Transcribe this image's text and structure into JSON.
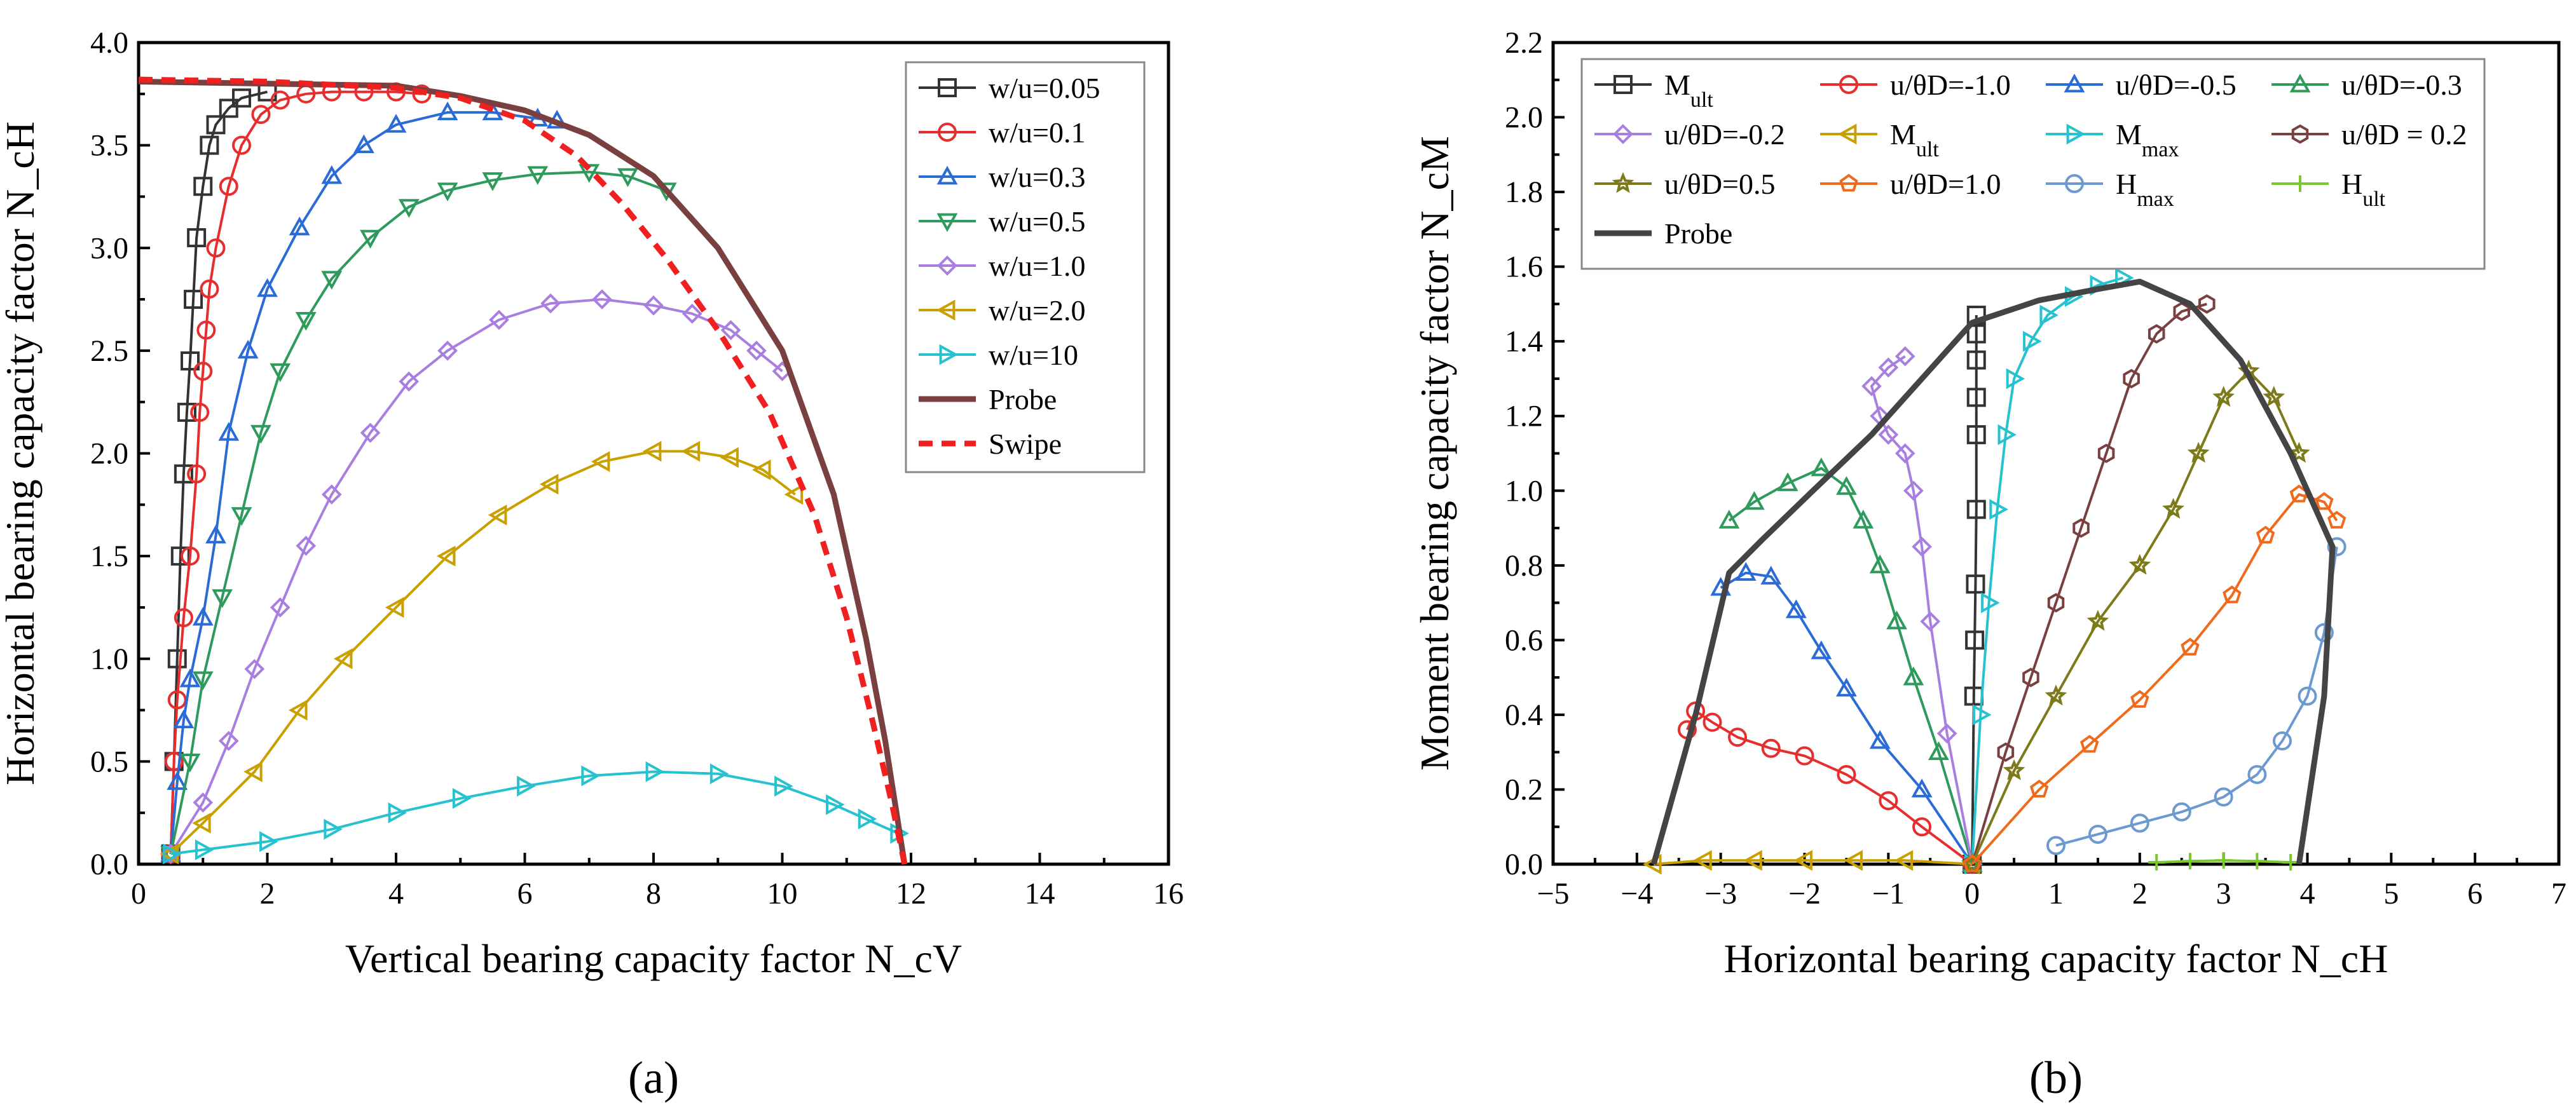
{
  "chart_data": [
    {
      "type": "line",
      "panel_label": "(a)",
      "xlabel": "Vertical bearing capacity factor N_cV",
      "ylabel": "Horizontal bearing capacity factor N_cH",
      "xlim": [
        0,
        16
      ],
      "ylim": [
        0,
        4.0
      ],
      "xticks": [
        "0",
        "2",
        "4",
        "6",
        "8",
        "10",
        "12",
        "14",
        "16"
      ],
      "yticks": [
        "0.0",
        "0.5",
        "1.0",
        "1.5",
        "2.0",
        "2.5",
        "3.0",
        "3.5",
        "4.0"
      ],
      "legend_position": "top-right",
      "series": [
        {
          "name": "w/u=0.05",
          "color": "#333333",
          "marker": "square",
          "x": [
            0.5,
            0.55,
            0.6,
            0.65,
            0.7,
            0.75,
            0.8,
            0.85,
            0.9,
            1.0,
            1.1,
            1.2,
            1.4,
            1.6,
            2.0
          ],
          "y": [
            0.05,
            0.5,
            1.0,
            1.5,
            1.9,
            2.2,
            2.45,
            2.75,
            3.05,
            3.3,
            3.5,
            3.6,
            3.68,
            3.73,
            3.76
          ]
        },
        {
          "name": "w/u=0.1",
          "color": "#e62e2e",
          "marker": "circle",
          "x": [
            0.5,
            0.55,
            0.6,
            0.7,
            0.8,
            0.9,
            0.95,
            1.0,
            1.05,
            1.1,
            1.2,
            1.4,
            1.6,
            1.9,
            2.2,
            2.6,
            3.0,
            3.5,
            4.0,
            4.4
          ],
          "y": [
            0.05,
            0.5,
            0.8,
            1.2,
            1.5,
            1.9,
            2.2,
            2.4,
            2.6,
            2.8,
            3.0,
            3.3,
            3.5,
            3.65,
            3.72,
            3.75,
            3.76,
            3.76,
            3.76,
            3.75
          ]
        },
        {
          "name": "w/u=0.3",
          "color": "#2a6bd6",
          "marker": "triangle-up",
          "x": [
            0.5,
            0.6,
            0.7,
            0.8,
            1.0,
            1.2,
            1.4,
            1.7,
            2.0,
            2.5,
            3.0,
            3.5,
            4.0,
            4.8,
            5.5,
            6.2,
            6.5
          ],
          "y": [
            0.05,
            0.4,
            0.7,
            0.9,
            1.2,
            1.6,
            2.1,
            2.5,
            2.8,
            3.1,
            3.35,
            3.5,
            3.6,
            3.66,
            3.66,
            3.63,
            3.62
          ]
        },
        {
          "name": "w/u=0.5",
          "color": "#2e9a5c",
          "marker": "triangle-down",
          "x": [
            0.5,
            0.8,
            1.0,
            1.3,
            1.6,
            1.9,
            2.2,
            2.6,
            3.0,
            3.6,
            4.2,
            4.8,
            5.5,
            6.2,
            7.0,
            7.6,
            8.2
          ],
          "y": [
            0.05,
            0.5,
            0.9,
            1.3,
            1.7,
            2.1,
            2.4,
            2.65,
            2.85,
            3.05,
            3.2,
            3.28,
            3.33,
            3.36,
            3.37,
            3.35,
            3.28
          ]
        },
        {
          "name": "w/u=1.0",
          "color": "#a87fe0",
          "marker": "diamond",
          "x": [
            0.5,
            1.0,
            1.4,
            1.8,
            2.2,
            2.6,
            3.0,
            3.6,
            4.2,
            4.8,
            5.6,
            6.4,
            7.2,
            8.0,
            8.6,
            9.2,
            9.6,
            10.0
          ],
          "y": [
            0.05,
            0.3,
            0.6,
            0.95,
            1.25,
            1.55,
            1.8,
            2.1,
            2.35,
            2.5,
            2.65,
            2.73,
            2.75,
            2.72,
            2.68,
            2.6,
            2.5,
            2.4
          ]
        },
        {
          "name": "w/u=2.0",
          "color": "#c9a000",
          "marker": "triangle-left",
          "x": [
            0.5,
            1.0,
            1.8,
            2.5,
            3.2,
            4.0,
            4.8,
            5.6,
            6.4,
            7.2,
            8.0,
            8.6,
            9.2,
            9.7,
            10.2
          ],
          "y": [
            0.05,
            0.2,
            0.45,
            0.75,
            1.0,
            1.25,
            1.5,
            1.7,
            1.85,
            1.96,
            2.01,
            2.01,
            1.98,
            1.92,
            1.8
          ]
        },
        {
          "name": "w/u=10",
          "color": "#27c2cf",
          "marker": "triangle-right",
          "x": [
            0.5,
            1.0,
            2.0,
            3.0,
            4.0,
            5.0,
            6.0,
            7.0,
            8.0,
            9.0,
            10.0,
            10.8,
            11.3,
            11.8
          ],
          "y": [
            0.05,
            0.07,
            0.11,
            0.17,
            0.25,
            0.32,
            0.38,
            0.43,
            0.45,
            0.44,
            0.38,
            0.29,
            0.22,
            0.15
          ]
        },
        {
          "name": "Probe",
          "color": "#7a4040",
          "marker": "none",
          "x": [
            0,
            2,
            4,
            5,
            6,
            7,
            8,
            9,
            10,
            10.8,
            11.3,
            11.6,
            11.8,
            11.9
          ],
          "y": [
            3.81,
            3.8,
            3.79,
            3.74,
            3.67,
            3.55,
            3.35,
            3.0,
            2.5,
            1.8,
            1.1,
            0.6,
            0.2,
            0.0
          ]
        },
        {
          "name": "Swipe",
          "color": "#f02020",
          "marker": "none",
          "dashed": true,
          "x": [
            0,
            2,
            4,
            5,
            6,
            6.8,
            7.5,
            8.2,
            9.0,
            9.8,
            10.5,
            11.0,
            11.4,
            11.7,
            11.9
          ],
          "y": [
            3.82,
            3.81,
            3.78,
            3.73,
            3.62,
            3.45,
            3.22,
            2.95,
            2.6,
            2.2,
            1.7,
            1.2,
            0.7,
            0.3,
            0.0
          ]
        }
      ]
    },
    {
      "type": "line",
      "panel_label": "(b)",
      "xlabel": "Horizontal bearing capacity factor N_cH",
      "ylabel": "Moment bearing capacity factor N_cM",
      "xlim": [
        -5,
        7
      ],
      "ylim": [
        0,
        2.2
      ],
      "xticks": [
        "−5",
        "−4",
        "−3",
        "−2",
        "−1",
        "0",
        "1",
        "2",
        "3",
        "4",
        "5",
        "6",
        "7"
      ],
      "yticks": [
        "0.0",
        "0.2",
        "0.4",
        "0.6",
        "0.8",
        "1.0",
        "1.2",
        "1.4",
        "1.6",
        "1.8",
        "2.0",
        "2.2"
      ],
      "legend_position": "top",
      "series": [
        {
          "name": "M_ult",
          "color": "#333333",
          "marker": "square",
          "x": [
            0,
            0.02,
            0.03,
            0.04,
            0.05,
            0.05,
            0.05,
            0.05,
            0.05,
            0.05
          ],
          "y": [
            0.0,
            0.45,
            0.6,
            0.75,
            0.95,
            1.15,
            1.25,
            1.35,
            1.42,
            1.47
          ]
        },
        {
          "name": "u/θD=-1.0",
          "color": "#e62e2e",
          "marker": "circle",
          "x": [
            0,
            -0.6,
            -1.0,
            -1.5,
            -2.0,
            -2.4,
            -2.8,
            -3.1,
            -3.3,
            -3.4
          ],
          "y": [
            0.0,
            0.1,
            0.17,
            0.24,
            0.29,
            0.31,
            0.34,
            0.38,
            0.41,
            0.36
          ]
        },
        {
          "name": "u/θD=-0.5",
          "color": "#2a6bd6",
          "marker": "triangle-up",
          "x": [
            0,
            -0.6,
            -1.1,
            -1.5,
            -1.8,
            -2.1,
            -2.4,
            -2.7,
            -3.0
          ],
          "y": [
            0.0,
            0.2,
            0.33,
            0.47,
            0.57,
            0.68,
            0.77,
            0.78,
            0.74
          ]
        },
        {
          "name": "u/θD=-0.3",
          "color": "#2e9a5c",
          "marker": "triangle-up",
          "x": [
            0,
            -0.4,
            -0.7,
            -0.9,
            -1.1,
            -1.3,
            -1.5,
            -1.8,
            -2.2,
            -2.6,
            -2.9
          ],
          "y": [
            0.0,
            0.3,
            0.5,
            0.65,
            0.8,
            0.92,
            1.01,
            1.06,
            1.02,
            0.97,
            0.92
          ]
        },
        {
          "name": "u/θD=-0.2",
          "color": "#a87fe0",
          "marker": "diamond",
          "x": [
            0,
            -0.3,
            -0.5,
            -0.6,
            -0.7,
            -0.8,
            -1.0,
            -1.1,
            -1.2,
            -1.0,
            -0.8
          ],
          "y": [
            0.0,
            0.35,
            0.65,
            0.85,
            1.0,
            1.1,
            1.15,
            1.2,
            1.28,
            1.33,
            1.36
          ]
        },
        {
          "name": "M_ult",
          "color": "#c9a000",
          "marker": "triangle-left",
          "x": [
            -3.8,
            -3.2,
            -2.6,
            -2.0,
            -1.4,
            -0.8,
            0
          ],
          "y": [
            0.0,
            0.01,
            0.01,
            0.01,
            0.01,
            0.01,
            0.0
          ]
        },
        {
          "name": "M_max",
          "color": "#27c2cf",
          "marker": "triangle-right",
          "x": [
            0,
            0.1,
            0.2,
            0.3,
            0.4,
            0.5,
            0.7,
            0.9,
            1.2,
            1.5,
            1.8
          ],
          "y": [
            0.0,
            0.4,
            0.7,
            0.95,
            1.15,
            1.3,
            1.4,
            1.47,
            1.52,
            1.55,
            1.57
          ]
        },
        {
          "name": "u/θD = 0.2",
          "color": "#7a4040",
          "marker": "hexagon",
          "x": [
            0,
            0.4,
            0.7,
            1.0,
            1.3,
            1.6,
            1.9,
            2.2,
            2.5,
            2.8
          ],
          "y": [
            0.0,
            0.3,
            0.5,
            0.7,
            0.9,
            1.1,
            1.3,
            1.42,
            1.48,
            1.5
          ]
        },
        {
          "name": "u/θD=0.5",
          "color": "#7d7a1a",
          "marker": "star",
          "x": [
            0,
            0.5,
            1.0,
            1.5,
            2.0,
            2.4,
            2.7,
            3.0,
            3.3,
            3.6,
            3.9
          ],
          "y": [
            0.0,
            0.25,
            0.45,
            0.65,
            0.8,
            0.95,
            1.1,
            1.25,
            1.32,
            1.25,
            1.1
          ]
        },
        {
          "name": "u/θD=1.0",
          "color": "#f06a1c",
          "marker": "pentagon",
          "x": [
            0,
            0.8,
            1.4,
            2.0,
            2.6,
            3.1,
            3.5,
            3.9,
            4.2,
            4.35
          ],
          "y": [
            0.0,
            0.2,
            0.32,
            0.44,
            0.58,
            0.72,
            0.88,
            0.99,
            0.97,
            0.92
          ]
        },
        {
          "name": "H_max",
          "color": "#6c9ad0",
          "marker": "circle-open",
          "x": [
            1.0,
            1.5,
            2.0,
            2.5,
            3.0,
            3.4,
            3.7,
            4.0,
            4.2,
            4.35
          ],
          "y": [
            0.05,
            0.08,
            0.11,
            0.14,
            0.18,
            0.24,
            0.33,
            0.45,
            0.62,
            0.85
          ]
        },
        {
          "name": "H_ult",
          "color": "#7ac72e",
          "marker": "plus",
          "x": [
            2.2,
            2.6,
            3.0,
            3.4,
            3.8
          ],
          "y": [
            0.005,
            0.008,
            0.01,
            0.008,
            0.005
          ]
        },
        {
          "name": "Probe",
          "color": "#444444",
          "marker": "none",
          "x": [
            -3.8,
            -3.3,
            -2.9,
            -2.5,
            -1.9,
            -1.2,
            -0.6,
            0,
            0.8,
            1.5,
            2.0,
            2.6,
            3.2,
            3.8,
            4.3,
            4.2,
            3.9
          ],
          "y": [
            0.0,
            0.4,
            0.78,
            0.87,
            1.0,
            1.15,
            1.3,
            1.45,
            1.51,
            1.54,
            1.56,
            1.5,
            1.35,
            1.1,
            0.85,
            0.45,
            0.0
          ]
        }
      ],
      "legend": [
        {
          "label": "M",
          "sub": "ult"
        },
        {
          "label": "u/θD=-1.0",
          "sub": ""
        },
        {
          "label": "u/θD=-0.5",
          "sub": ""
        },
        {
          "label": "u/θD=-0.3",
          "sub": ""
        },
        {
          "label": "u/θD=-0.2",
          "sub": ""
        },
        {
          "label": "M",
          "sub": "ult"
        },
        {
          "label": "M",
          "sub": "max"
        },
        {
          "label": "u/θD = 0.2",
          "sub": ""
        },
        {
          "label": "u/θD=0.5",
          "sub": ""
        },
        {
          "label": "u/θD=1.0",
          "sub": ""
        },
        {
          "label": "H",
          "sub": "max"
        },
        {
          "label": "H",
          "sub": "ult"
        },
        {
          "label": "Probe",
          "sub": ""
        }
      ]
    }
  ]
}
